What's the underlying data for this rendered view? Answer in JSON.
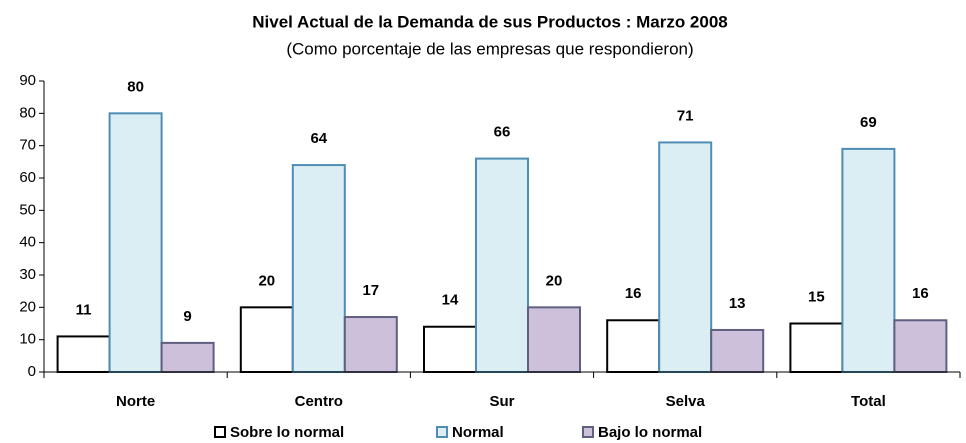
{
  "chart_data": {
    "type": "bar",
    "title": "Nivel Actual de la Demanda de sus Productos : Marzo 2008",
    "subtitle": "(Como porcentaje de las empresas que respondieron)",
    "categories": [
      "Norte",
      "Centro",
      "Sur",
      "Selva",
      "Total"
    ],
    "series": [
      {
        "name": "Sobre lo normal",
        "color": "#ffffff",
        "stroke": "#000000",
        "values": [
          11,
          20,
          14,
          16,
          15
        ]
      },
      {
        "name": "Normal",
        "color": "#dbeef4",
        "stroke": "#4f8db5",
        "values": [
          80,
          64,
          66,
          71,
          69
        ]
      },
      {
        "name": "Bajo lo normal",
        "color": "#ccc0da",
        "stroke": "#5f5f7f",
        "values": [
          9,
          17,
          20,
          13,
          16
        ]
      }
    ],
    "ylim": [
      0,
      90
    ],
    "yticks": [
      0,
      10,
      20,
      30,
      40,
      50,
      60,
      70,
      80,
      90
    ],
    "grid": false,
    "legend": "bottom"
  }
}
